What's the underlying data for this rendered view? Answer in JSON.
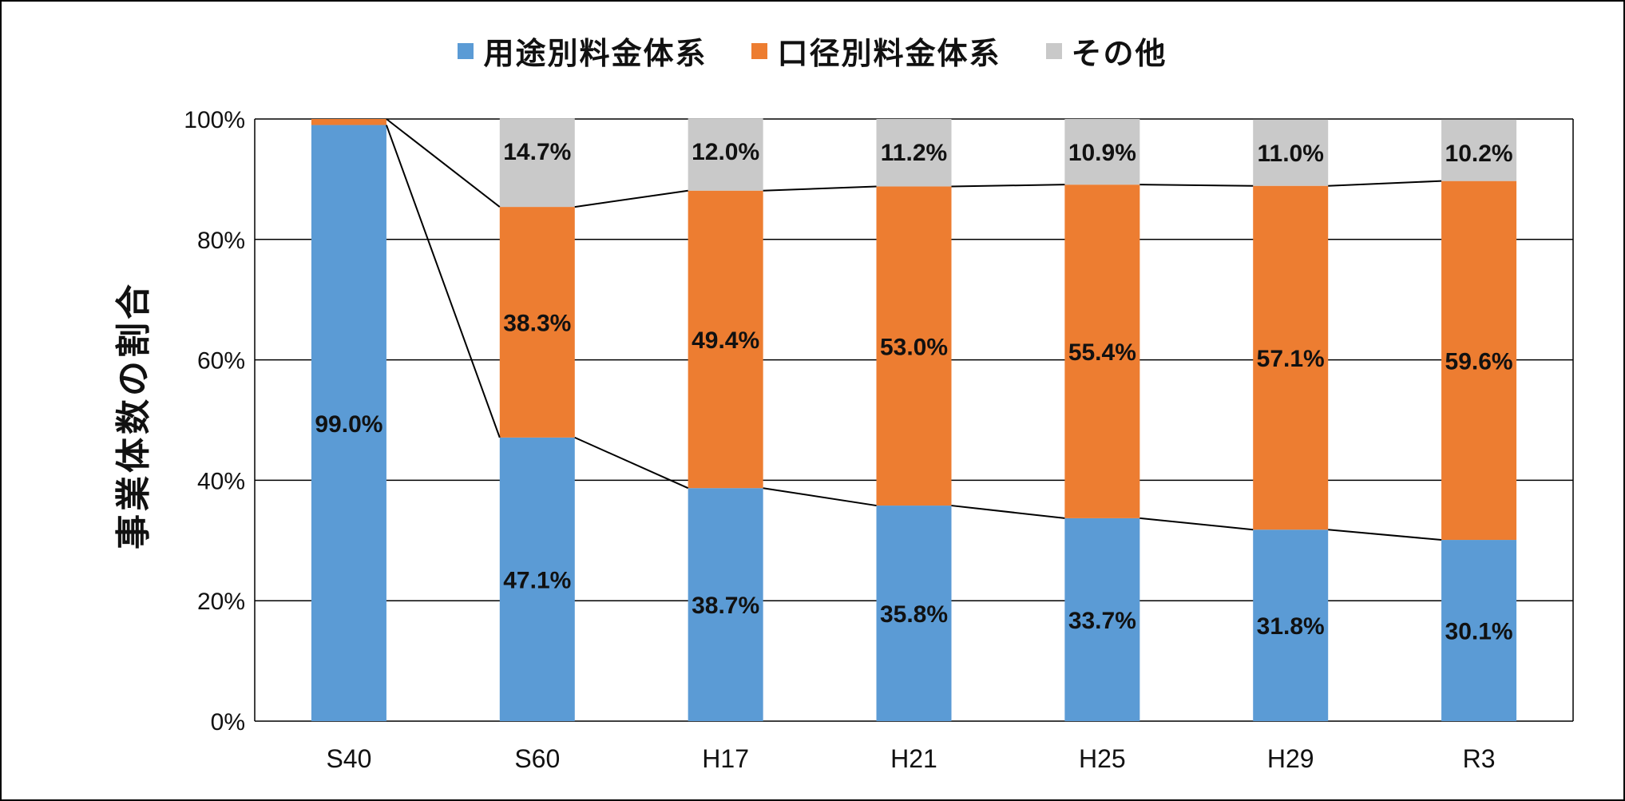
{
  "chart_data": {
    "type": "bar",
    "stacked": true,
    "categories": [
      "S40",
      "S60",
      "H17",
      "H21",
      "H25",
      "H29",
      "R3"
    ],
    "series": [
      {
        "name": "用途別料金体系",
        "color": "#5b9bd5",
        "values": [
          99.0,
          47.1,
          38.7,
          35.8,
          33.7,
          31.8,
          30.1
        ],
        "labels": [
          "99.0%",
          "47.1%",
          "38.7%",
          "35.8%",
          "33.7%",
          "31.8%",
          "30.1%"
        ]
      },
      {
        "name": "口径別料金体系",
        "color": "#ed7d31",
        "values": [
          1.0,
          38.3,
          49.4,
          53.0,
          55.4,
          57.1,
          59.6
        ],
        "labels": [
          "",
          "38.3%",
          "49.4%",
          "53.0%",
          "55.4%",
          "57.1%",
          "59.6%"
        ]
      },
      {
        "name": "その他",
        "color": "#c9c9c9",
        "values": [
          0.0,
          14.7,
          12.0,
          11.2,
          10.9,
          11.0,
          10.2
        ],
        "labels": [
          "",
          "14.7%",
          "12.0%",
          "11.2%",
          "10.9%",
          "11.0%",
          "10.2%"
        ]
      }
    ],
    "ylabel": "事業体数の割合",
    "ylim": [
      0,
      100
    ],
    "yticks": [
      "0%",
      "20%",
      "40%",
      "60%",
      "80%",
      "100%"
    ],
    "grid": true,
    "legend_position": "top",
    "series_lines": true
  }
}
